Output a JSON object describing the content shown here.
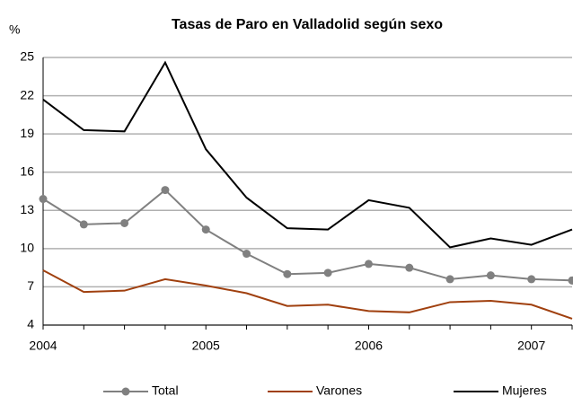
{
  "chart_data": {
    "type": "line",
    "title": "Tasas de Paro en Valladolid según sexo",
    "y_label": "%",
    "categories": [
      "2004",
      null,
      null,
      null,
      "2005",
      null,
      null,
      null,
      "2006",
      null,
      null,
      null,
      "2007",
      null
    ],
    "series": [
      {
        "name": "Total",
        "color": "#808080",
        "marker": true,
        "values": [
          13.9,
          11.9,
          12.0,
          14.6,
          11.5,
          9.6,
          8.0,
          8.1,
          8.8,
          8.5,
          7.6,
          7.9,
          7.6,
          7.5
        ]
      },
      {
        "name": "Varones",
        "color": "#a0400f",
        "marker": false,
        "values": [
          8.3,
          6.6,
          6.7,
          7.6,
          7.1,
          6.5,
          5.5,
          5.6,
          5.1,
          5.0,
          5.8,
          5.9,
          5.6,
          4.5
        ]
      },
      {
        "name": "Mujeres",
        "color": "#000000",
        "marker": false,
        "values": [
          21.7,
          19.3,
          19.2,
          24.6,
          17.8,
          14.0,
          11.6,
          11.5,
          13.8,
          13.2,
          10.1,
          10.8,
          10.3,
          11.5
        ]
      }
    ],
    "ylim": [
      4,
      25
    ],
    "yticks": [
      4,
      7,
      10,
      13,
      16,
      19,
      22,
      25
    ],
    "grid": true
  }
}
